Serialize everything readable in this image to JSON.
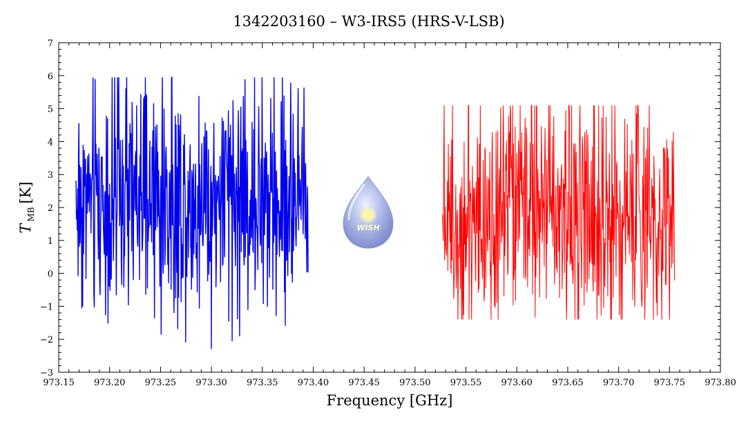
{
  "chart_data": {
    "type": "line",
    "title": "1342203160 – W3-IRS5 (HRS-V-LSB)",
    "xlabel": "Frequency [GHz]",
    "ylabel": {
      "main": "T",
      "subscript": "MB",
      "unit": "[K]"
    },
    "xlim": [
      973.15,
      973.8
    ],
    "ylim": [
      -3,
      7
    ],
    "xticks": [
      "973.15",
      "973.20",
      "973.25",
      "973.30",
      "973.35",
      "973.40",
      "973.45",
      "973.50",
      "973.55",
      "973.60",
      "973.65",
      "973.70",
      "973.75",
      "973.80"
    ],
    "xtick_values": [
      973.15,
      973.2,
      973.25,
      973.3,
      973.35,
      973.4,
      973.45,
      973.5,
      973.55,
      973.6,
      973.65,
      973.7,
      973.75,
      973.8
    ],
    "yticks": [
      "−3",
      "−2",
      "−1",
      "0",
      "1",
      "2",
      "3",
      "4",
      "5",
      "6",
      "7"
    ],
    "ytick_values": [
      -3,
      -2,
      -1,
      0,
      1,
      2,
      3,
      4,
      5,
      6,
      7
    ],
    "grid": false,
    "series": [
      {
        "color": "#0000ee",
        "x_range": [
          973.167,
          973.395
        ],
        "approx_mean": 2.2,
        "approx_min": -2.3,
        "approx_max": 5.95
      },
      {
        "color": "#ff0000",
        "x_range": [
          973.527,
          973.755
        ],
        "approx_mean": 1.9,
        "approx_min": -1.4,
        "approx_max": 5.1
      }
    ],
    "logo": {
      "text": "WISH"
    }
  }
}
